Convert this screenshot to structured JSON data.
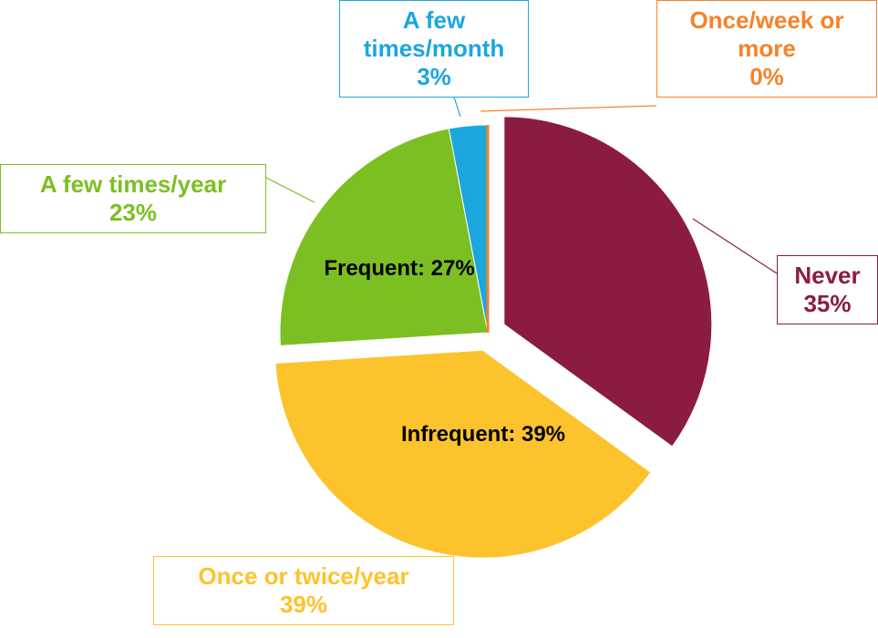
{
  "chart_data": {
    "type": "pie",
    "categories": [
      "Never",
      "Once or twice/year",
      "A few times/year",
      "A few times/month",
      "Once/week or more"
    ],
    "values": [
      35,
      39,
      23,
      3,
      0
    ],
    "value_labels": [
      "35%",
      "39%",
      "23%",
      "3%",
      "0%"
    ],
    "colors": [
      "#8b1c40",
      "#fdc32c",
      "#7cbf22",
      "#1ba6de",
      "#f5822a"
    ],
    "annotations": [
      "Frequent: 27%",
      "Infrequent: 39%"
    ]
  }
}
